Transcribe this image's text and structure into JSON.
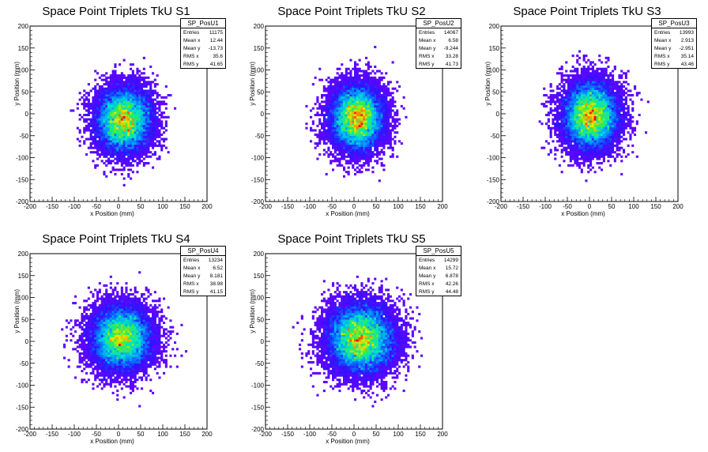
{
  "chart_data": [
    {
      "type": "heatmap",
      "title": "Space Point Triplets TkU S1",
      "xlabel": "x Position (mm)",
      "ylabel": "y Position (mm)",
      "xlim": [
        -200,
        200
      ],
      "ylim": [
        -200,
        200
      ],
      "x_ticks": [
        -200,
        -150,
        -100,
        -50,
        0,
        50,
        100,
        150,
        200
      ],
      "y_ticks": [
        -200,
        -150,
        -100,
        -50,
        0,
        50,
        100,
        150,
        200
      ],
      "stats": {
        "name": "SP_PosU1",
        "entries": "11175",
        "mean_x": "12.44",
        "mean_y": "-13.73",
        "rms_x": "35.6",
        "rms_y": "41.65"
      },
      "center": [
        12.44,
        -13.73
      ],
      "spread": [
        35.6,
        41.65
      ],
      "entries": 11175
    },
    {
      "type": "heatmap",
      "title": "Space Point Triplets TkU S2",
      "xlabel": "x Position (mm)",
      "ylabel": "y Position (mm)",
      "xlim": [
        -200,
        200
      ],
      "ylim": [
        -200,
        200
      ],
      "x_ticks": [
        -200,
        -150,
        -100,
        -50,
        0,
        50,
        100,
        150,
        200
      ],
      "y_ticks": [
        -200,
        -150,
        -100,
        -50,
        0,
        50,
        100,
        150,
        200
      ],
      "stats": {
        "name": "SP_PosU2",
        "entries": "14067",
        "mean_x": "6.58",
        "mean_y": "-9.244",
        "rms_x": "33.28",
        "rms_y": "41.73"
      },
      "center": [
        6.58,
        -9.244
      ],
      "spread": [
        33.28,
        41.73
      ],
      "entries": 14067
    },
    {
      "type": "heatmap",
      "title": "Space Point Triplets TkU S3",
      "xlabel": "x Position (mm)",
      "ylabel": "y Position (mm)",
      "xlim": [
        -200,
        200
      ],
      "ylim": [
        -200,
        200
      ],
      "x_ticks": [
        -200,
        -150,
        -100,
        -50,
        0,
        50,
        100,
        150,
        200
      ],
      "y_ticks": [
        -200,
        -150,
        -100,
        -50,
        0,
        50,
        100,
        150,
        200
      ],
      "stats": {
        "name": "SP_PosU3",
        "entries": "13993",
        "mean_x": "2.913",
        "mean_y": "-2.951",
        "rms_x": "35.14",
        "rms_y": "43.46"
      },
      "center": [
        2.913,
        -2.951
      ],
      "spread": [
        35.14,
        43.46
      ],
      "entries": 13993
    },
    {
      "type": "heatmap",
      "title": "Space Point Triplets TkU S4",
      "xlabel": "x Position (mm)",
      "ylabel": "y Position (mm)",
      "xlim": [
        -200,
        200
      ],
      "ylim": [
        -200,
        200
      ],
      "x_ticks": [
        -200,
        -150,
        -100,
        -50,
        0,
        50,
        100,
        150,
        200
      ],
      "y_ticks": [
        -200,
        -150,
        -100,
        -50,
        0,
        50,
        100,
        150,
        200
      ],
      "stats": {
        "name": "SP_PosU4",
        "entries": "13234",
        "mean_x": "6.52",
        "mean_y": "8.181",
        "rms_x": "38.98",
        "rms_y": "41.15"
      },
      "center": [
        6.52,
        8.181
      ],
      "spread": [
        38.98,
        41.15
      ],
      "entries": 13234
    },
    {
      "type": "heatmap",
      "title": "Space Point Triplets TkU S5",
      "xlabel": "x Position (mm)",
      "ylabel": "y Position (mm)",
      "xlim": [
        -200,
        200
      ],
      "ylim": [
        -200,
        200
      ],
      "x_ticks": [
        -200,
        -150,
        -100,
        -50,
        0,
        50,
        100,
        150,
        200
      ],
      "y_ticks": [
        -200,
        -150,
        -100,
        -50,
        0,
        50,
        100,
        150,
        200
      ],
      "stats": {
        "name": "SP_PosU5",
        "entries": "14299",
        "mean_x": "15.72",
        "mean_y": "6.878",
        "rms_x": "42.26",
        "rms_y": "44.48"
      },
      "center": [
        15.72,
        6.878
      ],
      "spread": [
        42.26,
        44.48
      ],
      "entries": 14299
    }
  ],
  "stat_labels": {
    "entries": "Entries",
    "mean_x": "Mean x",
    "mean_y": "Mean y",
    "rms_x": "RMS x",
    "rms_y": "RMS y"
  }
}
